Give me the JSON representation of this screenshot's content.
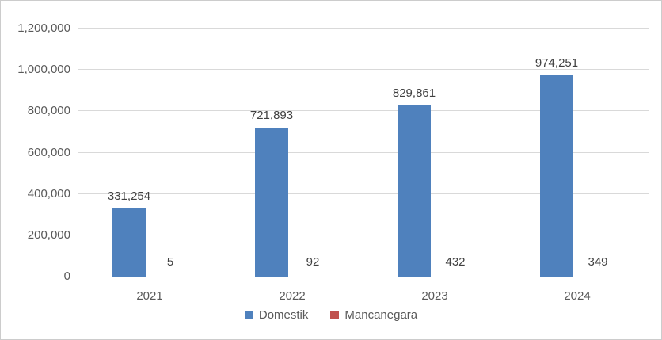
{
  "chart_data": {
    "type": "bar",
    "title": "",
    "categories": [
      "2021",
      "2022",
      "2023",
      "2024"
    ],
    "series": [
      {
        "name": "Domestik",
        "color": "#4F81BD",
        "values": [
          331254,
          721893,
          829861,
          974251
        ],
        "labels": [
          "331,254",
          "721,893",
          "829,861",
          "974,251"
        ]
      },
      {
        "name": "Mancanegara",
        "color": "#C0504D",
        "values": [
          5,
          92,
          432,
          349
        ],
        "labels": [
          "5",
          "92",
          "432",
          "349"
        ]
      }
    ],
    "y_axis": {
      "min": 0,
      "max": 1200000,
      "step": 200000,
      "tick_labels": [
        "0",
        "200,000",
        "400,000",
        "600,000",
        "800,000",
        "1,000,000",
        "1,200,000"
      ]
    },
    "xlabel": "",
    "ylabel": "",
    "grid": true,
    "legend_position": "bottom"
  },
  "colors": {
    "gridline": "#d9d9d9",
    "axis_line": "#c9c9c9",
    "axis_text": "#595959",
    "data_label_text": "#404040",
    "chart_border": "#cccccc",
    "background": "#ffffff"
  }
}
